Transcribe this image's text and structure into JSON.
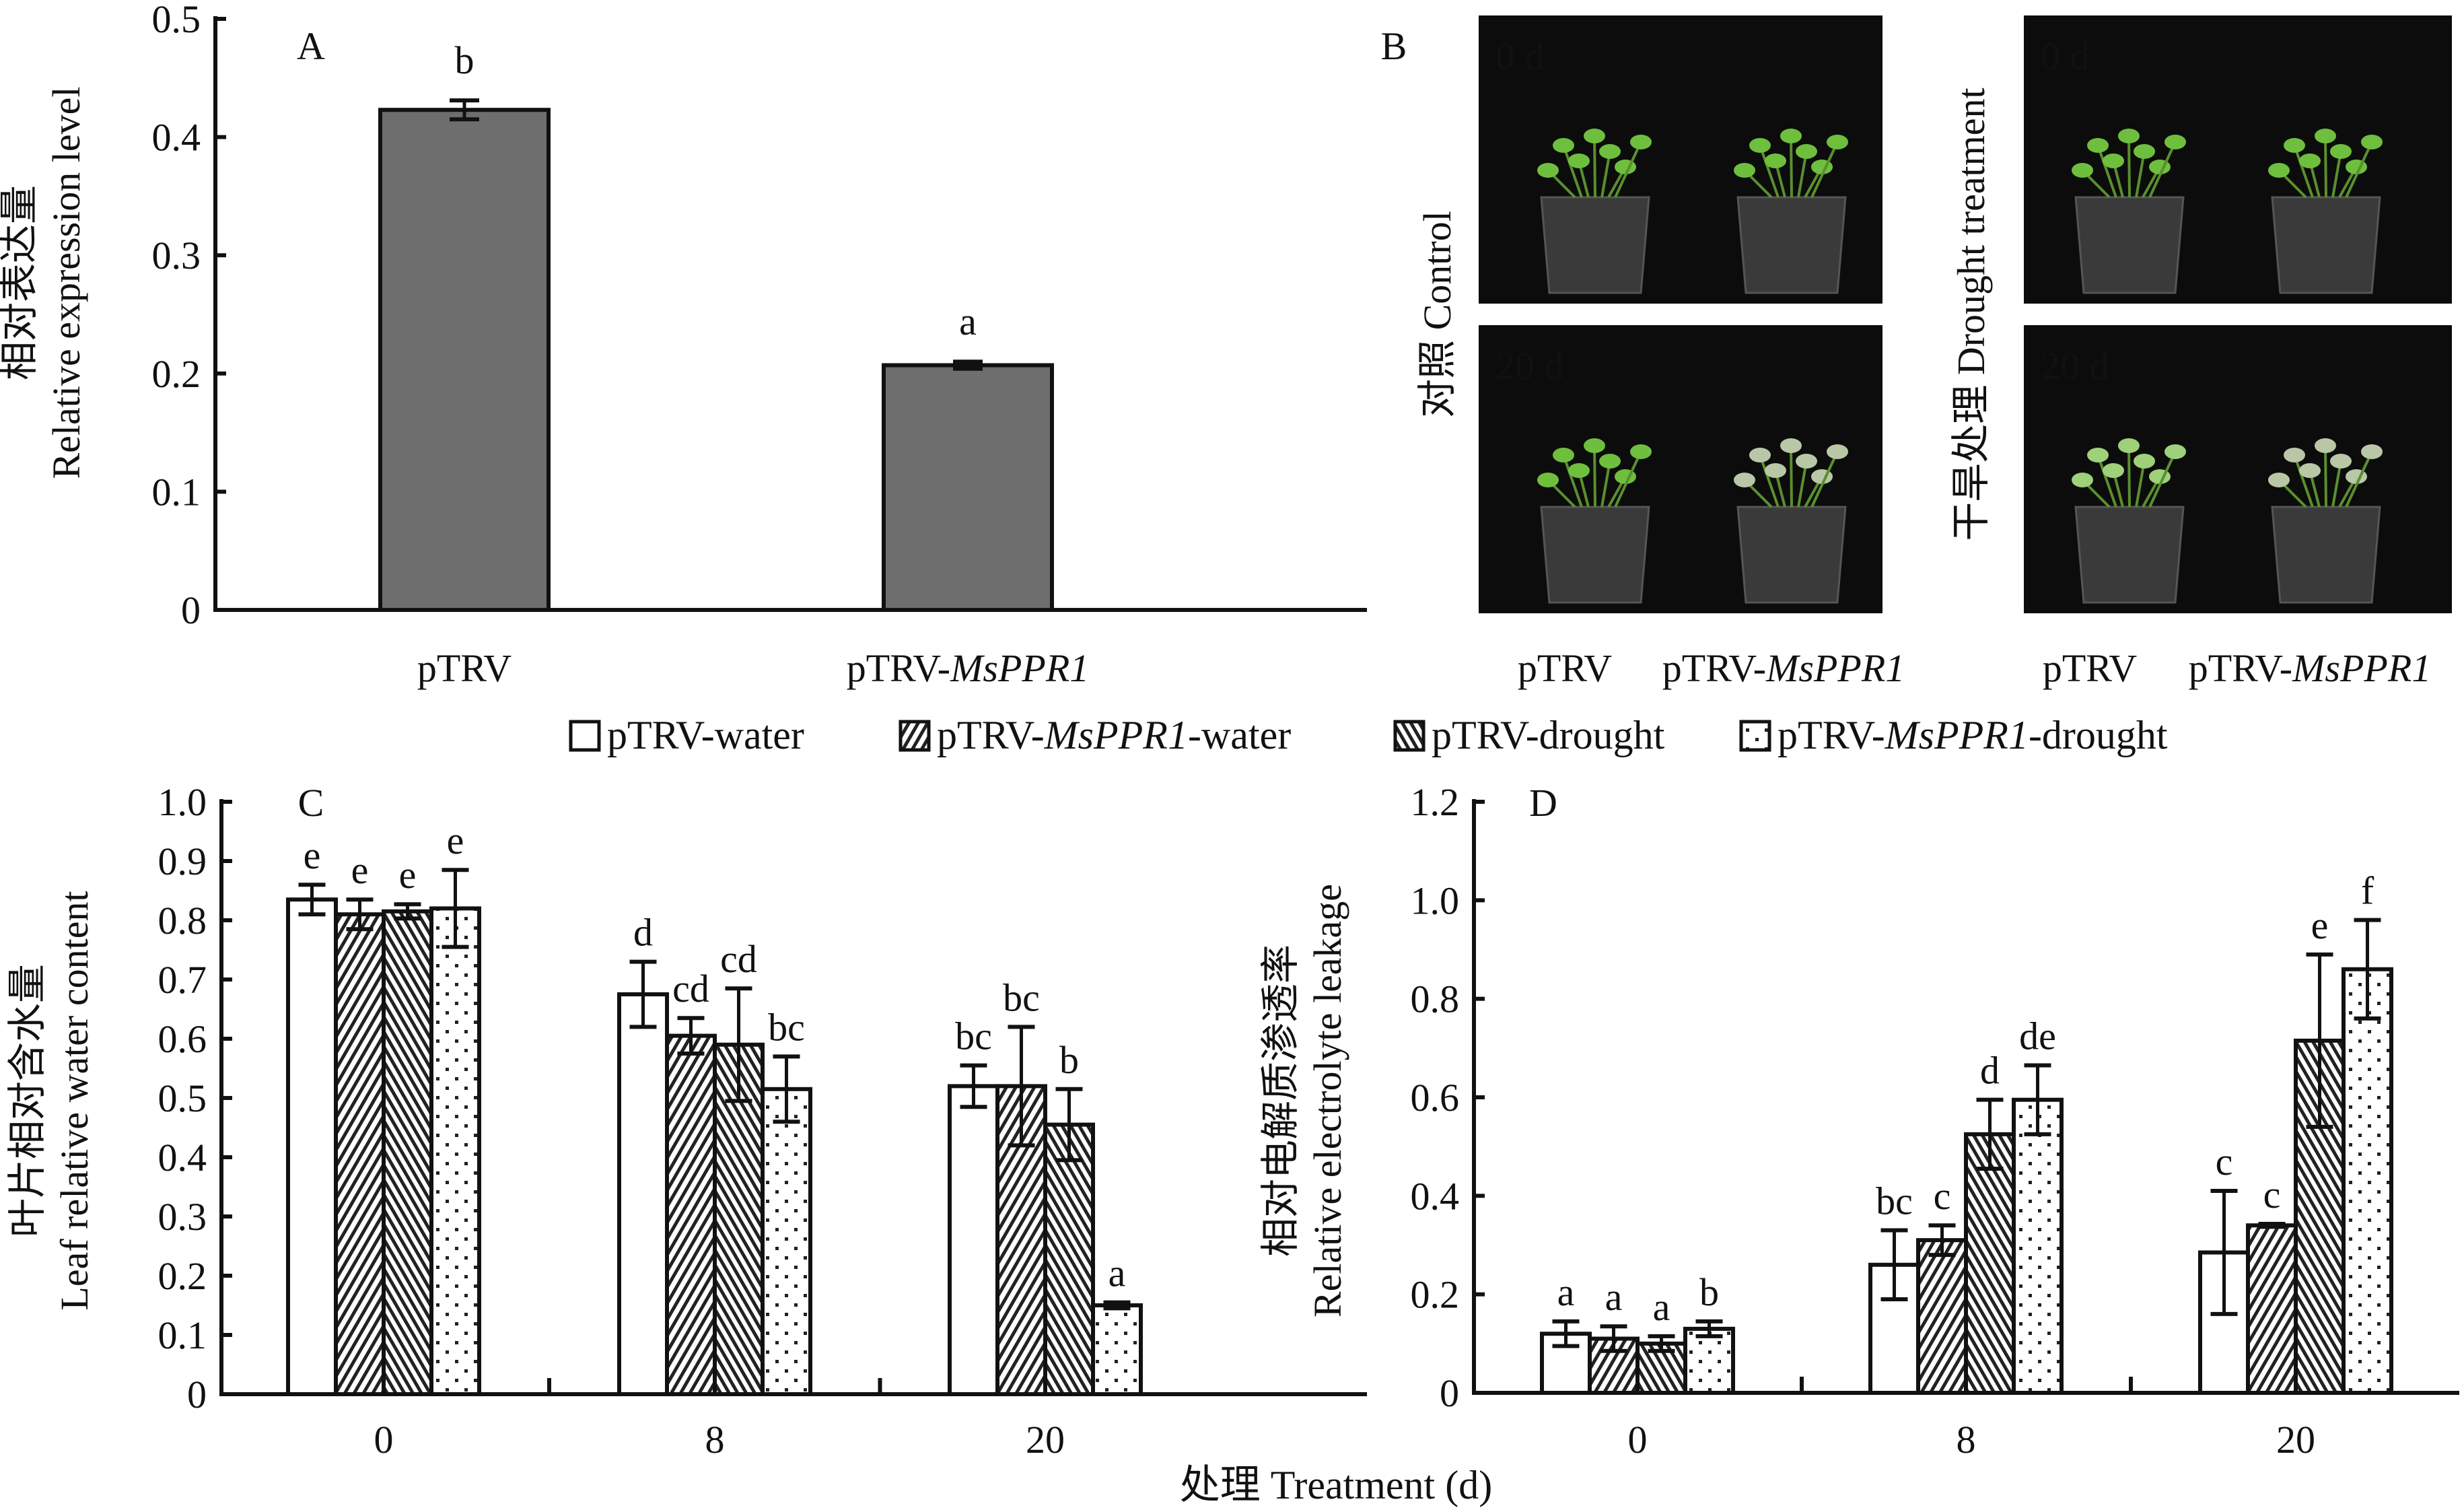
{
  "legend": [
    {
      "prefix": "pTRV-water",
      "italic": "",
      "suffix": "",
      "pattern": "white"
    },
    {
      "prefix": "pTRV-",
      "italic": "MsPPR1",
      "suffix": "-water",
      "pattern": "fwd"
    },
    {
      "prefix": "pTRV-drought",
      "italic": "",
      "suffix": "",
      "pattern": "back"
    },
    {
      "prefix": "pTRV-",
      "italic": "MsPPR1",
      "suffix": "-drought",
      "pattern": "dots"
    }
  ],
  "shared_xlabel": "处理 Treatment (d)",
  "panel_b": {
    "letter": "B",
    "row_labels": [
      "0 d",
      "20 d"
    ],
    "group_labels": [
      "对照 Control",
      "干旱处理 Drought treatment"
    ],
    "col_labels": [
      {
        "prefix": "pTRV",
        "italic": ""
      },
      {
        "prefix": "pTRV-",
        "italic": "MsPPR1"
      }
    ]
  },
  "chart_data": [
    {
      "panel": "A",
      "type": "bar",
      "categories": [
        {
          "prefix": "pTRV",
          "italic": ""
        },
        {
          "prefix": "pTRV-",
          "italic": "MsPPR1"
        }
      ],
      "values": [
        0.423,
        0.207
      ],
      "errors": [
        0.008,
        0.003
      ],
      "letters": [
        "b",
        "a"
      ],
      "ylabel_cn": "相对表达量",
      "ylabel_en": "Relative expression level",
      "ylim": [
        0,
        0.5
      ],
      "yticks": [
        "0",
        "0.1",
        "0.2",
        "0.3",
        "0.4",
        "0.5"
      ],
      "bar_color": "#6e6e6e"
    },
    {
      "panel": "C",
      "type": "bar",
      "categories": [
        "0",
        "8",
        "20"
      ],
      "series": [
        {
          "name": "pTRV-water",
          "values": [
            0.835,
            0.675,
            0.52
          ],
          "errors": [
            0.025,
            0.055,
            0.035
          ],
          "letters": [
            "e",
            "d",
            "bc"
          ]
        },
        {
          "name": "pTRV-MsPPR1-water",
          "values": [
            0.81,
            0.605,
            0.52
          ],
          "errors": [
            0.025,
            0.03,
            0.1
          ],
          "letters": [
            "e",
            "cd",
            "bc"
          ]
        },
        {
          "name": "pTRV-drought",
          "values": [
            0.815,
            0.59,
            0.455
          ],
          "errors": [
            0.012,
            0.095,
            0.06
          ],
          "letters": [
            "e",
            "cd",
            "b"
          ]
        },
        {
          "name": "pTRV-MsPPR1-drought",
          "values": [
            0.82,
            0.515,
            0.15
          ],
          "errors": [
            0.065,
            0.055,
            0.005
          ],
          "letters": [
            "e",
            "bc",
            "a"
          ]
        }
      ],
      "ylabel_cn": "叶片相对含水量",
      "ylabel_en": "Leaf relative water content",
      "ylim": [
        0,
        1.0
      ],
      "yticks": [
        "0",
        "0.1",
        "0.2",
        "0.3",
        "0.4",
        "0.5",
        "0.6",
        "0.7",
        "0.8",
        "0.9",
        "1.0"
      ]
    },
    {
      "panel": "D",
      "type": "bar",
      "categories": [
        "0",
        "8",
        "20"
      ],
      "series": [
        {
          "name": "pTRV-water",
          "values": [
            0.12,
            0.26,
            0.285
          ],
          "errors": [
            0.025,
            0.07,
            0.125
          ],
          "letters": [
            "a",
            "bc",
            "c"
          ]
        },
        {
          "name": "pTRV-MsPPR1-water",
          "values": [
            0.11,
            0.31,
            0.34
          ],
          "errors": [
            0.025,
            0.03,
            0.003
          ],
          "letters": [
            "a",
            "c",
            "c"
          ]
        },
        {
          "name": "pTRV-drought",
          "values": [
            0.1,
            0.525,
            0.715
          ],
          "errors": [
            0.015,
            0.07,
            0.175
          ],
          "letters": [
            "a",
            "d",
            "e"
          ]
        },
        {
          "name": "pTRV-MsPPR1-drought",
          "values": [
            0.13,
            0.595,
            0.86
          ],
          "errors": [
            0.015,
            0.07,
            0.1
          ],
          "letters": [
            "b",
            "de",
            "f"
          ]
        }
      ],
      "ylabel_cn": "相对电解质渗透率",
      "ylabel_en": "Relative electrolyte leakage",
      "ylim": [
        0,
        1.2
      ],
      "yticks": [
        "0",
        "0.2",
        "0.4",
        "0.6",
        "0.8",
        "1.0",
        "1.2"
      ]
    }
  ]
}
